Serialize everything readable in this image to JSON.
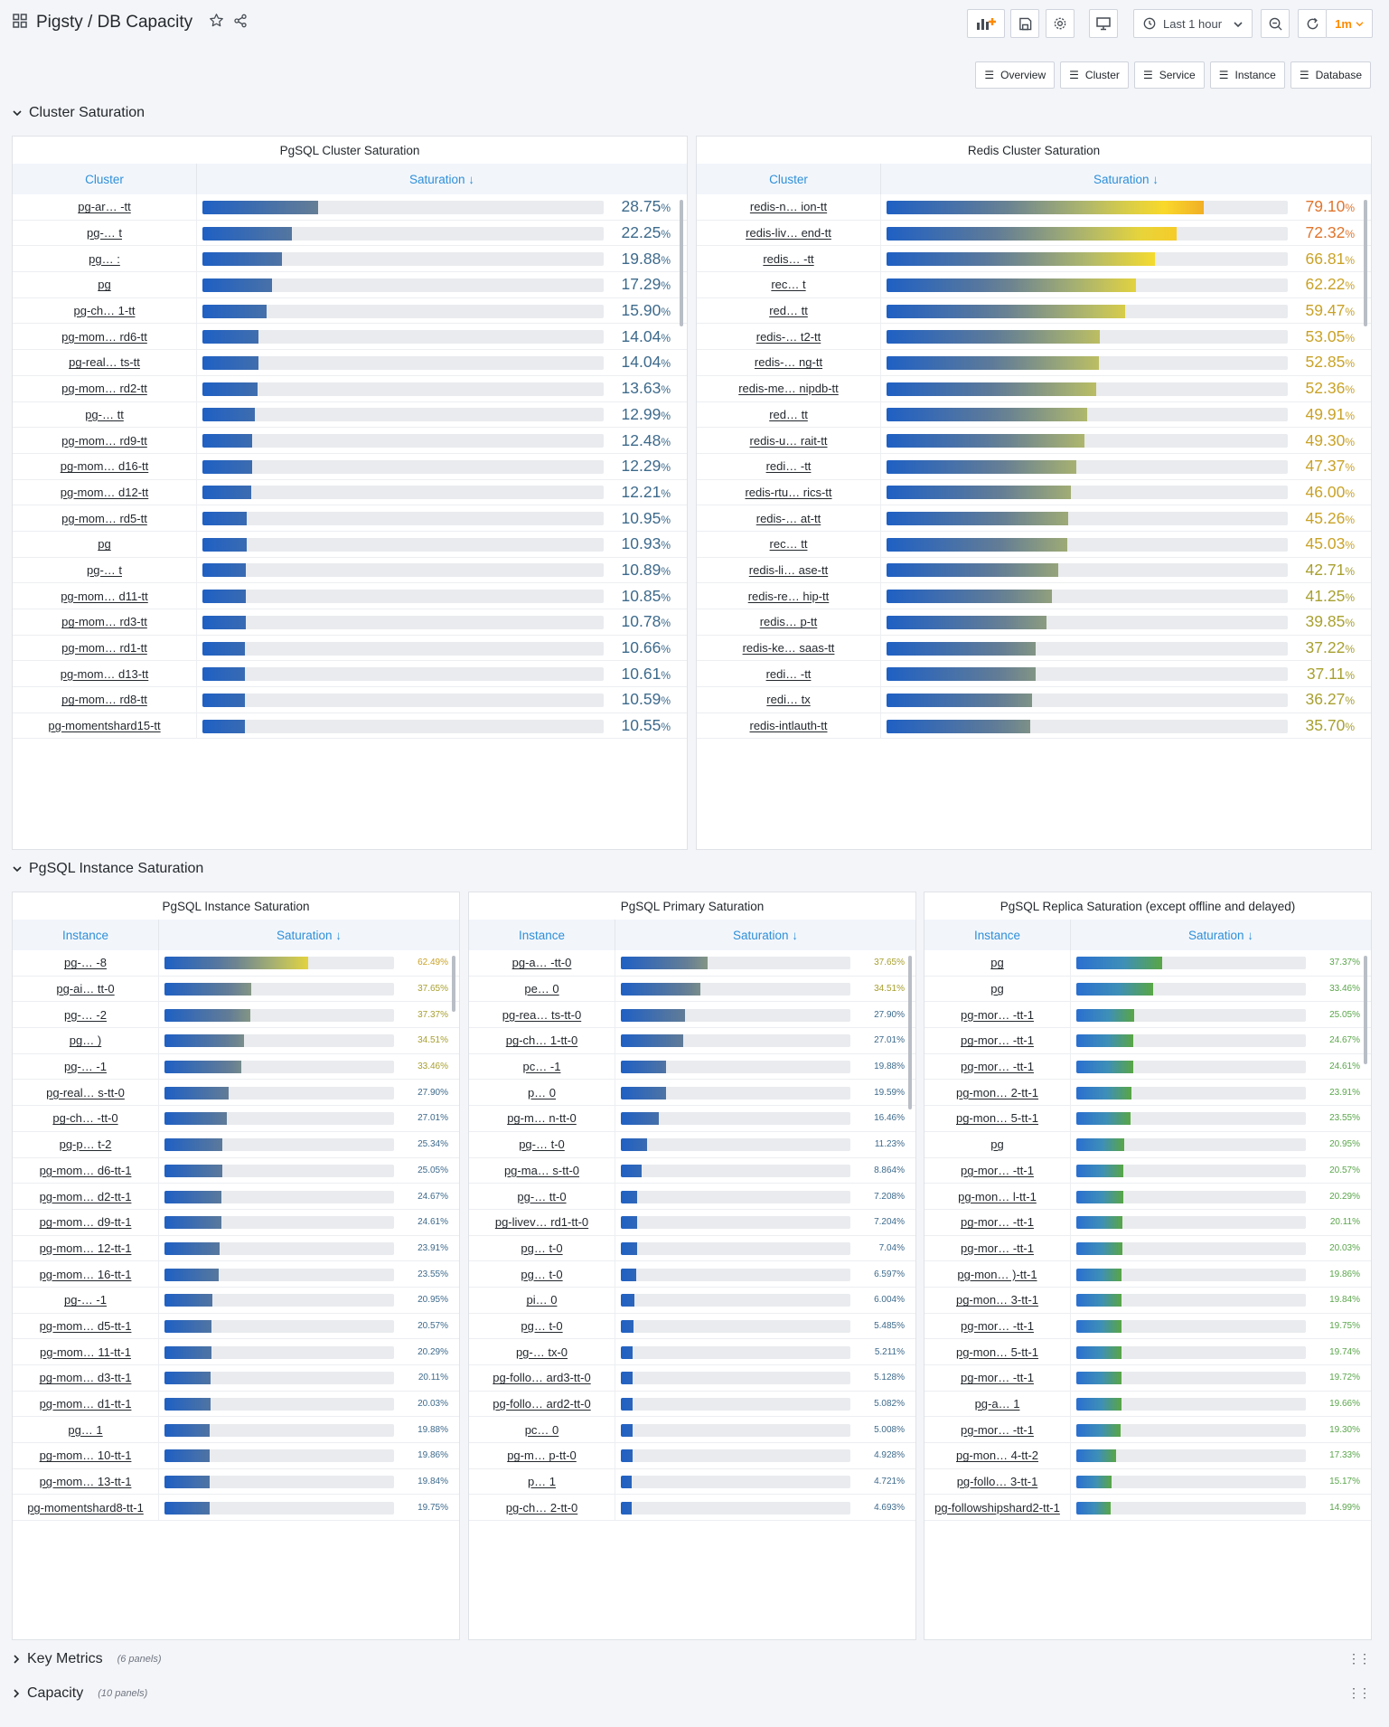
{
  "header": {
    "title": "Pigsty / DB Capacity",
    "time_range": "Last 1 hour",
    "refresh": "1m"
  },
  "links": [
    "Overview",
    "Cluster",
    "Service",
    "Instance",
    "Database"
  ],
  "rows": [
    {
      "title": "Cluster Saturation"
    },
    {
      "title": "PgSQL Instance Saturation"
    },
    {
      "title": "Key Metrics",
      "count": "(6 panels)"
    },
    {
      "title": "Capacity",
      "count": "(10 panels)"
    }
  ],
  "accent": "#2f8fd9",
  "panels": [
    {
      "title": "PgSQL Cluster Saturation",
      "col1": "Cluster",
      "col2": "Saturation ↓",
      "scheme": "blue-gold",
      "rows": [
        [
          "pg-ar… -tt",
          28.75
        ],
        [
          "pg-… t",
          22.25
        ],
        [
          "pg… :",
          19.88
        ],
        [
          "pg",
          17.29
        ],
        [
          "pg-ch… 1-tt",
          15.9
        ],
        [
          "pg-mom… rd6-tt",
          14.04
        ],
        [
          "pg-real… ts-tt",
          14.04
        ],
        [
          "pg-mom… rd2-tt",
          13.63
        ],
        [
          "pg-… tt",
          12.99
        ],
        [
          "pg-mom… rd9-tt",
          12.48
        ],
        [
          "pg-mom… d16-tt",
          12.29
        ],
        [
          "pg-mom… d12-tt",
          12.21
        ],
        [
          "pg-mom… rd5-tt",
          10.95
        ],
        [
          "pg",
          10.93
        ],
        [
          "pg-… t",
          10.89
        ],
        [
          "pg-mom… d11-tt",
          10.85
        ],
        [
          "pg-mom… rd3-tt",
          10.78
        ],
        [
          "pg-mom… rd1-tt",
          10.66
        ],
        [
          "pg-mom… d13-tt",
          10.61
        ],
        [
          "pg-mom… rd8-tt",
          10.59
        ],
        [
          "pg-momentshard15-tt",
          10.55
        ]
      ]
    },
    {
      "title": "Redis Cluster Saturation",
      "col1": "Cluster",
      "col2": "Saturation ↓",
      "scheme": "blue-gold",
      "rows": [
        [
          "redis-n… ion-tt",
          79.1
        ],
        [
          "redis-liv… end-tt",
          72.32
        ],
        [
          "redis… -tt",
          66.81
        ],
        [
          "rec… t",
          62.22
        ],
        [
          "red… tt",
          59.47
        ],
        [
          "redis-… t2-tt",
          53.05
        ],
        [
          "redis-… ng-tt",
          52.85
        ],
        [
          "redis-me… nipdb-tt",
          52.36
        ],
        [
          "red… tt",
          49.91
        ],
        [
          "redis-u… rait-tt",
          49.3
        ],
        [
          "redi… -tt",
          47.37
        ],
        [
          "redis-rtu… rics-tt",
          46.0
        ],
        [
          "redis-… at-tt",
          45.26
        ],
        [
          "rec… tt",
          45.03
        ],
        [
          "redis-li… ase-tt",
          42.71
        ],
        [
          "redis-re… hip-tt",
          41.25
        ],
        [
          "redis… p-tt",
          39.85
        ],
        [
          "redis-ke… saas-tt",
          37.22
        ],
        [
          "redi… -tt",
          37.11
        ],
        [
          "redi… tx",
          36.27
        ],
        [
          "redis-intlauth-tt",
          35.7
        ]
      ]
    },
    {
      "title": "PgSQL Instance Saturation",
      "col1": "Instance",
      "col2": "Saturation ↓",
      "scheme": "blue-gold",
      "rows": [
        [
          "pg-… -8",
          62.49
        ],
        [
          "pg-ai… tt-0",
          37.65
        ],
        [
          "pg-… -2",
          37.37
        ],
        [
          "pg… )",
          34.51
        ],
        [
          "pg-… -1",
          33.46
        ],
        [
          "pg-real… s-tt-0",
          27.9
        ],
        [
          "pg-ch… -tt-0",
          27.01
        ],
        [
          "pg-p… t-2",
          25.34
        ],
        [
          "pg-mom… d6-tt-1",
          25.05
        ],
        [
          "pg-mom… d2-tt-1",
          24.67
        ],
        [
          "pg-mom… d9-tt-1",
          24.61
        ],
        [
          "pg-mom… 12-tt-1",
          23.91
        ],
        [
          "pg-mom… 16-tt-1",
          23.55
        ],
        [
          "pg-… -1",
          20.95
        ],
        [
          "pg-mom… d5-tt-1",
          20.57
        ],
        [
          "pg-mom… 11-tt-1",
          20.29
        ],
        [
          "pg-mom… d3-tt-1",
          20.11
        ],
        [
          "pg-mom… d1-tt-1",
          20.03
        ],
        [
          "pg… 1",
          19.88
        ],
        [
          "pg-mom… 10-tt-1",
          19.86
        ],
        [
          "pg-mom… 13-tt-1",
          19.84
        ],
        [
          "pg-momentshard8-tt-1",
          19.75
        ]
      ]
    },
    {
      "title": "PgSQL Primary Saturation",
      "col1": "Instance",
      "col2": "Saturation ↓",
      "scheme": "blue-gold",
      "rows": [
        [
          "pg-a… -tt-0",
          37.65
        ],
        [
          "pe… 0",
          34.51
        ],
        [
          "pg-rea… ts-tt-0",
          27.9
        ],
        [
          "pg-ch… 1-tt-0",
          27.01
        ],
        [
          "pc… -1",
          19.88
        ],
        [
          "p… 0",
          19.59
        ],
        [
          "pg-m… n-tt-0",
          16.46
        ],
        [
          "pg-… t-0",
          11.23
        ],
        [
          "pg-ma… s-tt-0",
          8.864
        ],
        [
          "pg-… tt-0",
          7.208
        ],
        [
          "pg-livev… rd1-tt-0",
          7.204
        ],
        [
          "pg… t-0",
          7.04
        ],
        [
          "pg… t-0",
          6.597
        ],
        [
          "pi… 0",
          6.004
        ],
        [
          "pg… t-0",
          5.485
        ],
        [
          "pg-… tx-0",
          5.211
        ],
        [
          "pg-follo… ard3-tt-0",
          5.128
        ],
        [
          "pg-follo… ard2-tt-0",
          5.082
        ],
        [
          "pc… 0",
          5.008
        ],
        [
          "pg-m… p-tt-0",
          4.928
        ],
        [
          "p… 1",
          4.721
        ],
        [
          "pg-ch… 2-tt-0",
          4.693
        ]
      ]
    },
    {
      "title": "PgSQL Replica Saturation (except offline and delayed)",
      "col1": "Instance",
      "col2": "Saturation ↓",
      "scheme": "blue-green",
      "rows": [
        [
          "pg",
          37.37
        ],
        [
          "pg",
          33.46
        ],
        [
          "pg-mor… -tt-1",
          25.05
        ],
        [
          "pg-mor… -tt-1",
          24.67
        ],
        [
          "pg-mor… -tt-1",
          24.61
        ],
        [
          "pg-mon… 2-tt-1",
          23.91
        ],
        [
          "pg-mon… 5-tt-1",
          23.55
        ],
        [
          "pg",
          20.95
        ],
        [
          "pg-mor… -tt-1",
          20.57
        ],
        [
          "pg-mon… l-tt-1",
          20.29
        ],
        [
          "pg-mor… -tt-1",
          20.11
        ],
        [
          "pg-mor… -tt-1",
          20.03
        ],
        [
          "pg-mon… )-tt-1",
          19.86
        ],
        [
          "pg-mon… 3-tt-1",
          19.84
        ],
        [
          "pg-mor… -tt-1",
          19.75
        ],
        [
          "pg-mon… 5-tt-1",
          19.74
        ],
        [
          "pg-mor… -tt-1",
          19.72
        ],
        [
          "pg-a… 1",
          19.66
        ],
        [
          "pg-mor… -tt-1",
          19.3
        ],
        [
          "pg-mon… 4-tt-2",
          17.33
        ],
        [
          "pg-follo… 3-tt-1",
          15.17
        ],
        [
          "pg-followshipshard2-tt-1",
          14.99
        ]
      ]
    }
  ]
}
